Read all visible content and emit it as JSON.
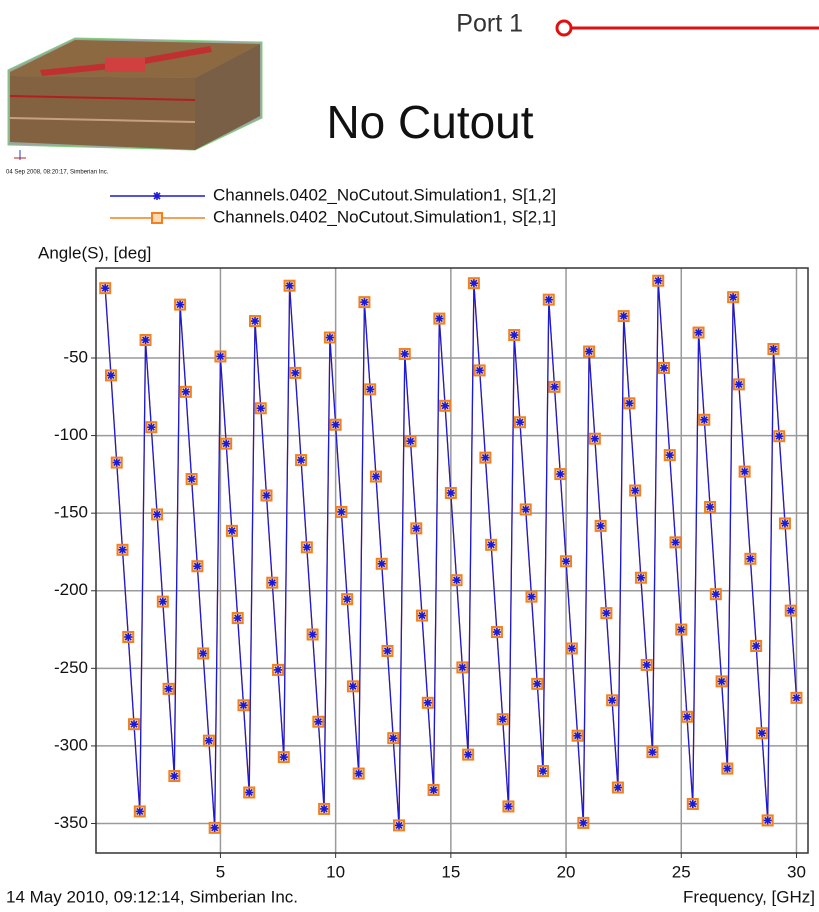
{
  "chart_data": {
    "type": "line",
    "title": "No Cutout",
    "port_label": "Port 1",
    "thumbnail_caption": "04 Sep 2008, 08:20:17, Simberian Inc.",
    "footer": "14 May 2010, 09:12:14, Simberian Inc.",
    "x_label": "Frequency, [GHz]",
    "y_label": "Angle(S), [deg]",
    "x": [
      0,
      0.25,
      0.5,
      0.75,
      1,
      1.25,
      1.5,
      1.75,
      2,
      2.25,
      2.5,
      2.75,
      3,
      3.25,
      3.5,
      3.75,
      4,
      4.25,
      4.5,
      4.75,
      5,
      5.25,
      5.5,
      5.75,
      6,
      6.25,
      6.5,
      6.75,
      7,
      7.25,
      7.5,
      7.75,
      8,
      8.25,
      8.5,
      8.75,
      9,
      9.25,
      9.5,
      9.75,
      10,
      10.25,
      10.5,
      10.75,
      11,
      11.25,
      11.5,
      11.75,
      12,
      12.25,
      12.5,
      12.75,
      13,
      13.25,
      13.5,
      13.75,
      14,
      14.25,
      14.5,
      14.75,
      15,
      15.25,
      15.5,
      15.75,
      16,
      16.25,
      16.5,
      16.75,
      17,
      17.25,
      17.5,
      17.75,
      18,
      18.25,
      18.5,
      18.75,
      19,
      19.25,
      19.5,
      19.75,
      20,
      20.25,
      20.5,
      20.75,
      21,
      21.25,
      21.5,
      21.75,
      22,
      22.25,
      22.5,
      22.75,
      23,
      23.25,
      23.5,
      23.75,
      24,
      24.25,
      24.5,
      24.75,
      25,
      25.25,
      25.5,
      25.75,
      26,
      26.25,
      26.5,
      26.75,
      27,
      27.25,
      27.5,
      27.75,
      28,
      28.25,
      28.5,
      28.75,
      29,
      29.25,
      29.5,
      29.75,
      30
    ],
    "series": [
      {
        "name": "Channels.0402_NoCutout.Simulation1, S[1,2]",
        "color": "#1a1ad8",
        "marker": "asterisk",
        "values": [
          -5,
          -61.2,
          -117.4,
          -173.6,
          -229.8,
          -286,
          -342.2,
          -38.4,
          -94.6,
          -150.8,
          -207,
          -263.2,
          -319.4,
          -15.6,
          -71.8,
          -128,
          -184.2,
          -240.4,
          -296.6,
          -352.8,
          -49,
          -105.2,
          -161.4,
          -217.6,
          -273.8,
          -330,
          -26.2,
          -82.4,
          -138.6,
          -194.8,
          -251,
          -307.2,
          -3.4,
          -59.6,
          -115.8,
          -172,
          -228.2,
          -284.4,
          -340.6,
          -36.8,
          -93,
          -149.2,
          -205.4,
          -261.6,
          -317.8,
          -14,
          -70.2,
          -126.4,
          -182.6,
          -238.8,
          -295,
          -351.2,
          -47.4,
          -103.6,
          -159.8,
          -216,
          -272.2,
          -328.4,
          -24.6,
          -80.8,
          -137,
          -193.2,
          -249.4,
          -305.6,
          -1.8,
          -58,
          -114.2,
          -170.4,
          -226.6,
          -282.8,
          -339,
          -35.2,
          -91.4,
          -147.6,
          -203.8,
          -260,
          -316.2,
          -12.4,
          -68.6,
          -124.8,
          -181,
          -237.2,
          -293.4,
          -349.6,
          -45.8,
          -102,
          -158.2,
          -214.4,
          -270.6,
          -326.8,
          -23,
          -79.2,
          -135.4,
          -191.6,
          -247.8,
          -304,
          -0.2,
          -56.4,
          -112.6,
          -168.8,
          -225,
          -281.2,
          -337.4,
          -33.6,
          -89.8,
          -146,
          -202.2,
          -258.4,
          -314.6,
          -10.8,
          -67,
          -123.2,
          -179.4,
          -235.6,
          -291.8,
          -348,
          -44.2,
          -100.4,
          -156.6,
          -212.8,
          -269
        ]
      },
      {
        "name": "Channels.0402_NoCutout.Simulation1, S[2,1]",
        "color": "#f08020",
        "marker": "square",
        "values": [
          -5,
          -61.2,
          -117.4,
          -173.6,
          -229.8,
          -286,
          -342.2,
          -38.4,
          -94.6,
          -150.8,
          -207,
          -263.2,
          -319.4,
          -15.6,
          -71.8,
          -128,
          -184.2,
          -240.4,
          -296.6,
          -352.8,
          -49,
          -105.2,
          -161.4,
          -217.6,
          -273.8,
          -330,
          -26.2,
          -82.4,
          -138.6,
          -194.8,
          -251,
          -307.2,
          -3.4,
          -59.6,
          -115.8,
          -172,
          -228.2,
          -284.4,
          -340.6,
          -36.8,
          -93,
          -149.2,
          -205.4,
          -261.6,
          -317.8,
          -14,
          -70.2,
          -126.4,
          -182.6,
          -238.8,
          -295,
          -351.2,
          -47.4,
          -103.6,
          -159.8,
          -216,
          -272.2,
          -328.4,
          -24.6,
          -80.8,
          -137,
          -193.2,
          -249.4,
          -305.6,
          -1.8,
          -58,
          -114.2,
          -170.4,
          -226.6,
          -282.8,
          -339,
          -35.2,
          -91.4,
          -147.6,
          -203.8,
          -260,
          -316.2,
          -12.4,
          -68.6,
          -124.8,
          -181,
          -237.2,
          -293.4,
          -349.6,
          -45.8,
          -102,
          -158.2,
          -214.4,
          -270.6,
          -326.8,
          -23,
          -79.2,
          -135.4,
          -191.6,
          -247.8,
          -304,
          -0.2,
          -56.4,
          -112.6,
          -168.8,
          -225,
          -281.2,
          -337.4,
          -33.6,
          -89.8,
          -146,
          -202.2,
          -258.4,
          -314.6,
          -10.8,
          -67,
          -123.2,
          -179.4,
          -235.6,
          -291.8,
          -348,
          -44.2,
          -100.4,
          -156.6,
          -212.8,
          -269
        ]
      }
    ],
    "xlim": [
      -0.4,
      30.5
    ],
    "ylim": [
      -369,
      8
    ],
    "xticks": [
      5,
      10,
      15,
      20,
      25,
      30
    ],
    "yticks": [
      -50,
      -100,
      -150,
      -200,
      -250,
      -300,
      -350
    ],
    "grid": true
  }
}
